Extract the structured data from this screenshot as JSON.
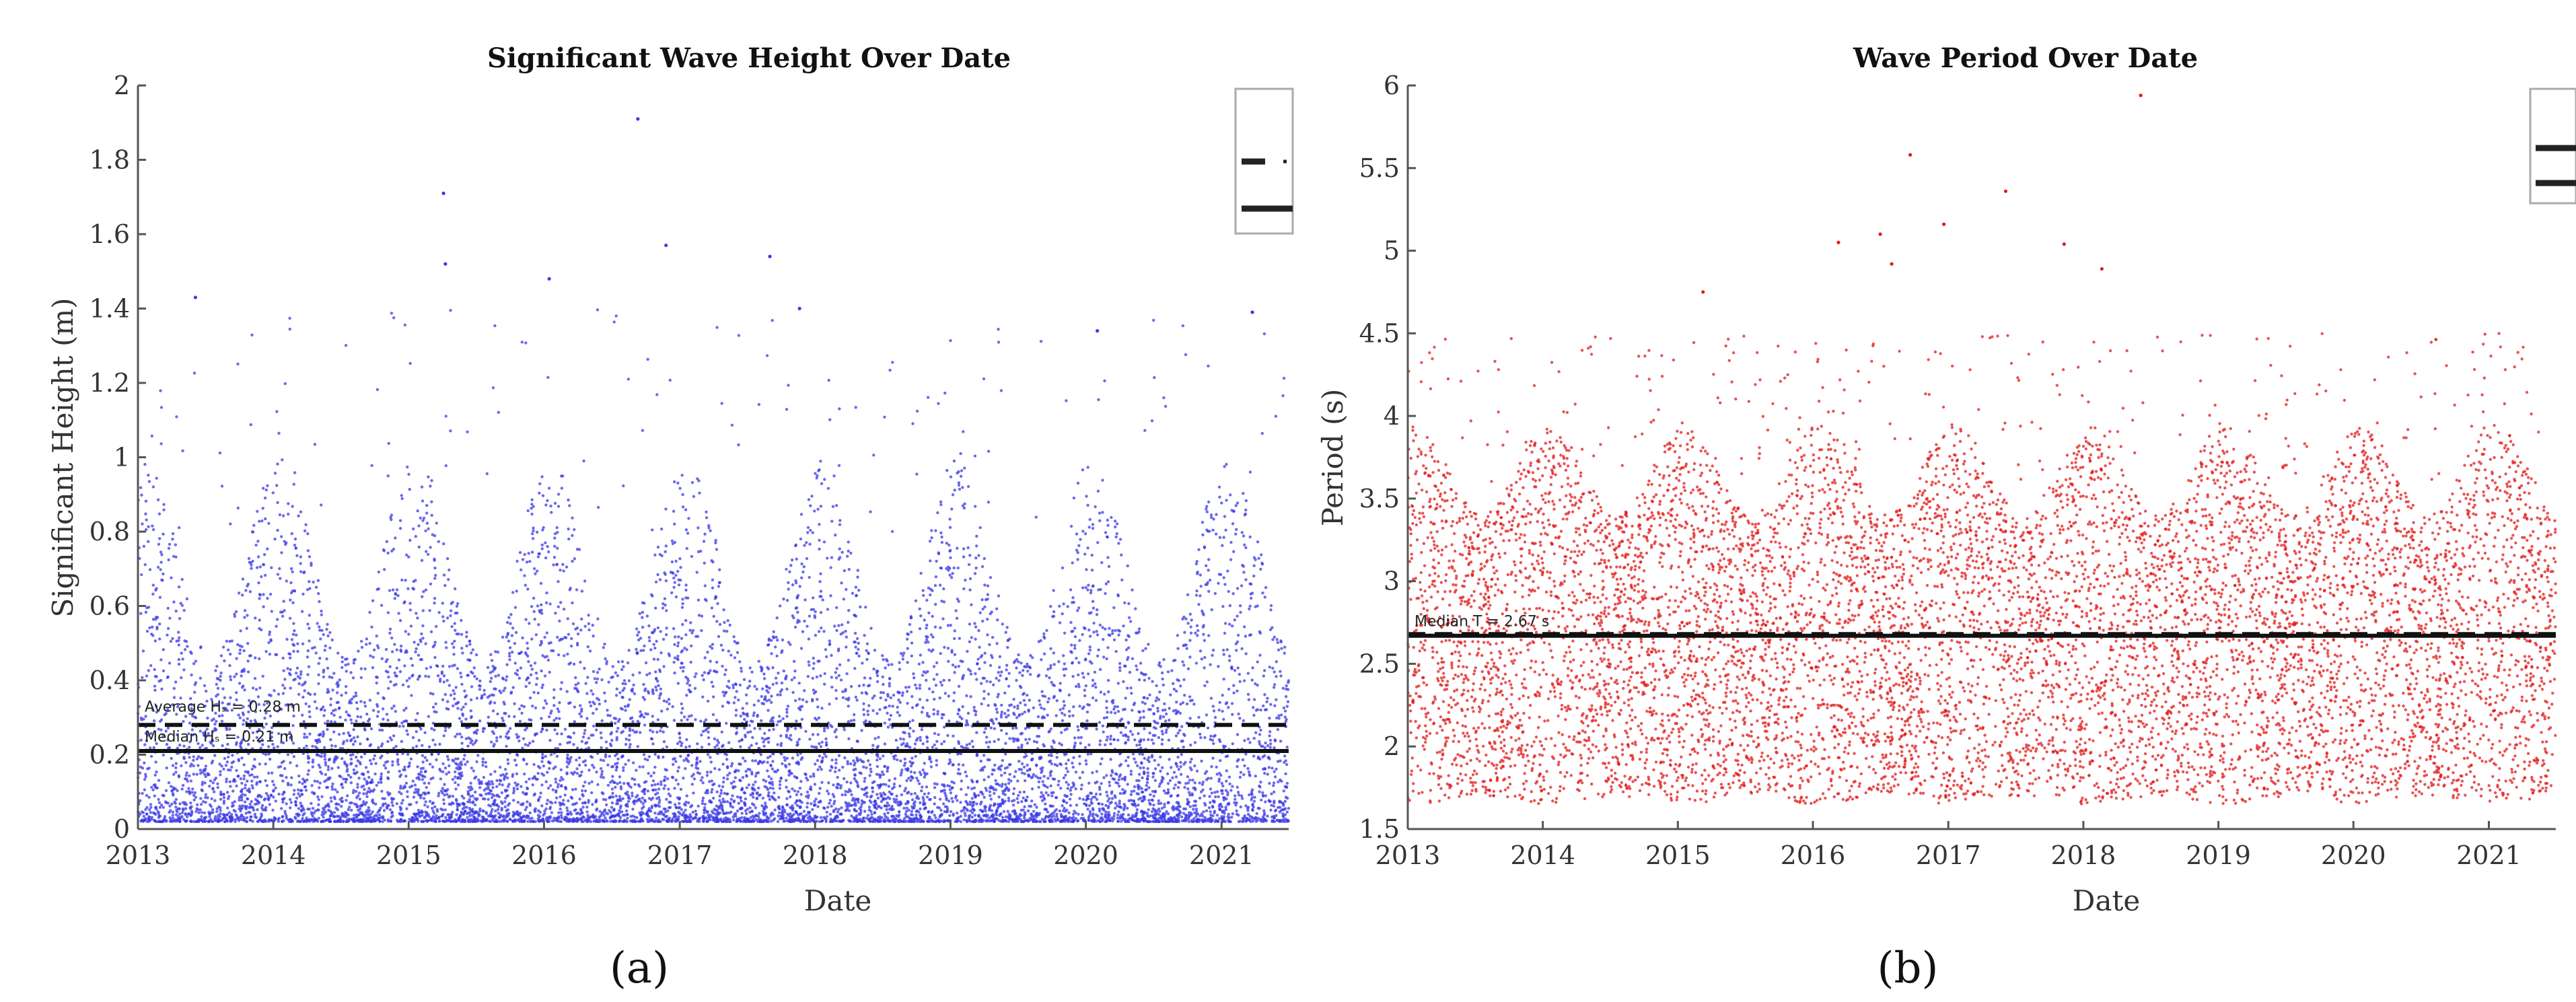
{
  "colors": {
    "series_a": "#3a3ae6",
    "series_b": "#e01b1b",
    "line": "#111111",
    "axis": "#555555"
  },
  "chart_data": [
    {
      "type": "scatter",
      "title": "Significant Wave Height Over Date",
      "xlabel": "Date",
      "ylabel": "Significant Height (m)",
      "caption": "(a)",
      "xlim": [
        "2013-01-01",
        "2021-07-01"
      ],
      "ylim": [
        0,
        2
      ],
      "xticks": [
        "2013",
        "2014",
        "2015",
        "2016",
        "2017",
        "2018",
        "2019",
        "2020",
        "2021"
      ],
      "yticks": [
        0,
        0.2,
        0.4,
        0.6,
        0.8,
        1,
        1.2,
        1.4,
        1.6,
        1.8,
        2
      ],
      "grid": false,
      "legend": "top-right (truncated)",
      "marker_color": "#3a3ae6",
      "distribution": {
        "typical_range": [
          0.02,
          0.8
        ],
        "seasonal_peaks_to": 1.4,
        "max_outlier": 1.91
      },
      "reference_lines": [
        {
          "kind": "dashed",
          "value": 0.28,
          "label": "Average Hₛ = 0.28 m"
        },
        {
          "kind": "solid",
          "value": 0.21,
          "label": "Median Hₛ = 0.21 m"
        }
      ],
      "outliers": [
        {
          "x": "2016-09-10",
          "y": 1.91
        },
        {
          "x": "2015-04-05",
          "y": 1.71
        },
        {
          "x": "2016-11-25",
          "y": 1.57
        },
        {
          "x": "2017-09-01",
          "y": 1.54
        },
        {
          "x": "2015-04-10",
          "y": 1.52
        },
        {
          "x": "2016-01-15",
          "y": 1.48
        },
        {
          "x": "2013-06-05",
          "y": 1.43
        },
        {
          "x": "2017-11-20",
          "y": 1.4
        },
        {
          "x": "2021-03-25",
          "y": 1.39
        },
        {
          "x": "2020-02-01",
          "y": 1.34
        }
      ]
    },
    {
      "type": "scatter",
      "title": "Wave Period Over Date",
      "xlabel": "Date",
      "ylabel": "Period (s)",
      "caption": "(b)",
      "xlim": [
        "2013-01-01",
        "2021-07-01"
      ],
      "ylim": [
        1.5,
        6
      ],
      "xticks": [
        "2013",
        "2014",
        "2015",
        "2016",
        "2017",
        "2018",
        "2019",
        "2020",
        "2021"
      ],
      "yticks": [
        1.5,
        2,
        2.5,
        3,
        3.5,
        4,
        4.5,
        5,
        5.5,
        6
      ],
      "grid": false,
      "legend": "top-right (truncated)",
      "marker_color": "#e01b1b",
      "distribution": {
        "typical_range": [
          1.6,
          3.9
        ],
        "seasonal_peaks_to": 4.5,
        "max_outlier": 5.94
      },
      "reference_lines": [
        {
          "kind": "dashed",
          "value": 2.68,
          "label": ""
        },
        {
          "kind": "solid",
          "value": 2.67,
          "label": "Median T = 2.67 s"
        }
      ],
      "outliers": [
        {
          "x": "2018-06-05",
          "y": 5.94
        },
        {
          "x": "2016-09-20",
          "y": 5.58
        },
        {
          "x": "2017-06-05",
          "y": 5.36
        },
        {
          "x": "2016-12-20",
          "y": 5.16
        },
        {
          "x": "2016-07-01",
          "y": 5.1
        },
        {
          "x": "2016-03-10",
          "y": 5.05
        },
        {
          "x": "2017-11-10",
          "y": 5.04
        },
        {
          "x": "2016-08-01",
          "y": 4.92
        },
        {
          "x": "2018-02-20",
          "y": 4.89
        },
        {
          "x": "2015-03-10",
          "y": 4.75
        }
      ]
    }
  ]
}
